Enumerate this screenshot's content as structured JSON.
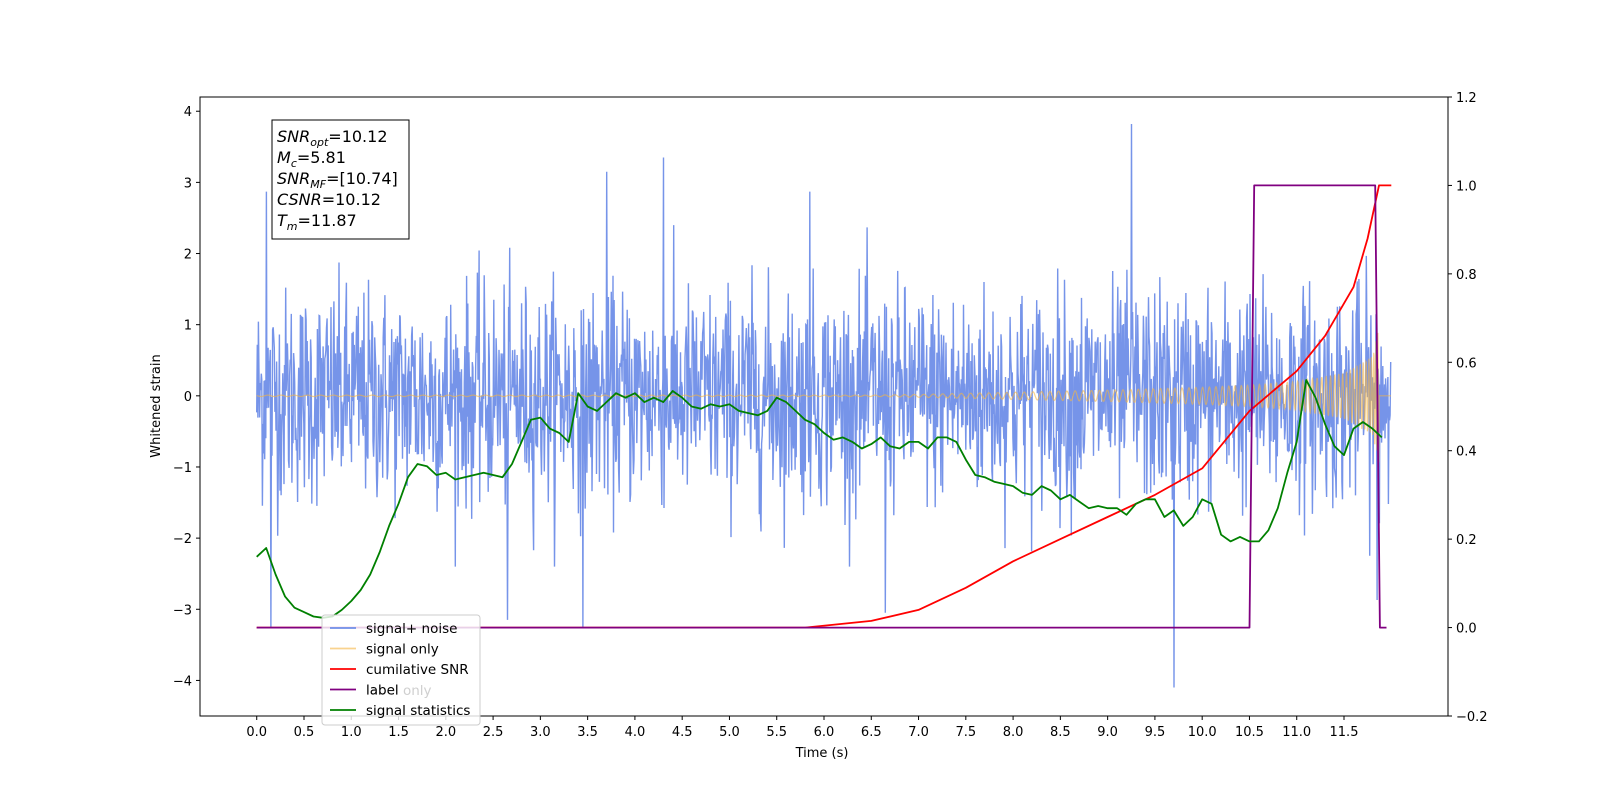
{
  "chart_data": {
    "type": "line",
    "xlabel": "Time (s)",
    "ylabel": "Whitened strain",
    "xlim": [
      -0.6,
      12.6
    ],
    "ylim": [
      -4.5,
      4.2
    ],
    "y2lim": [
      -0.2,
      1.2
    ],
    "x_ticks": [
      0.0,
      0.5,
      1.0,
      1.5,
      2.0,
      2.5,
      3.0,
      3.5,
      4.0,
      4.5,
      5.0,
      5.5,
      6.0,
      6.5,
      7.0,
      7.5,
      8.0,
      8.5,
      9.0,
      9.5,
      10.0,
      10.5,
      11.0,
      11.5
    ],
    "x_tick_labels": [
      "0.0",
      "0.5",
      "1.0",
      "1.5",
      "2.0",
      "2.5",
      "3.0",
      "3.5",
      "4.0",
      "4.5",
      "5.0",
      "5.5",
      "6.0",
      "6.5",
      "7.0",
      "7.5",
      "8.0",
      "8.5",
      "9.0",
      "9.5",
      "10.0",
      "10.5",
      "11.0",
      "11.5"
    ],
    "y_ticks": [
      -4,
      -3,
      -2,
      -1,
      0,
      1,
      2,
      3,
      4
    ],
    "y_tick_labels": [
      "−4",
      "−3",
      "−2",
      "−1",
      "0",
      "1",
      "2",
      "3",
      "4"
    ],
    "y2_ticks": [
      -0.2,
      0.0,
      0.2,
      0.4,
      0.6,
      0.8,
      1.0,
      1.2
    ],
    "y2_tick_labels": [
      "−0.2",
      "0.0",
      "0.2",
      "0.4",
      "0.6",
      "0.8",
      "1.0",
      "1.2"
    ],
    "grid": false,
    "legend_position": "lower-left",
    "annotation": [
      {
        "symbol": "SNR",
        "sub": "opt",
        "value": "=10.12"
      },
      {
        "symbol": "M",
        "sub": "c",
        "value": "=5.81"
      },
      {
        "symbol": "SNR",
        "sub": "MF",
        "value": "=[10.74]"
      },
      {
        "symbol": "CSNR",
        "sub": "",
        "value": "=10.12"
      },
      {
        "symbol": "T",
        "sub": "m",
        "value": "=11.87"
      }
    ],
    "series": [
      {
        "name": "signal+ noise",
        "color": "#6f8ee8",
        "axis": "left",
        "style": "dense noise, approx. ±1.5 with spikes",
        "x_range": [
          0.0,
          12.0
        ],
        "peaks": [
          {
            "x": 0.1,
            "y": 2.87
          },
          {
            "x": 0.15,
            "y": -3.25
          },
          {
            "x": 3.7,
            "y": 3.15
          },
          {
            "x": 4.3,
            "y": 3.35
          },
          {
            "x": 5.85,
            "y": 2.87
          },
          {
            "x": 9.25,
            "y": 3.82
          },
          {
            "x": 9.7,
            "y": -4.1
          },
          {
            "x": 3.45,
            "y": -3.25
          },
          {
            "x": 2.65,
            "y": -3.15
          },
          {
            "x": 6.65,
            "y": -3.05
          },
          {
            "x": 11.85,
            "y": -2.87
          }
        ]
      },
      {
        "name": "signal only",
        "color": "#f5b642",
        "axis": "left",
        "style": "chirp, amplitude grows toward merger",
        "x": [
          0.0,
          6.5,
          7.0,
          8.0,
          9.0,
          10.0,
          10.5,
          11.0,
          11.5,
          11.8,
          11.87
        ],
        "envelope": [
          0.01,
          0.01,
          0.02,
          0.05,
          0.08,
          0.12,
          0.15,
          0.2,
          0.32,
          0.55,
          0.95
        ]
      },
      {
        "name": "cumilative SNR",
        "color": "#ff0000",
        "axis": "right",
        "x": [
          0.0,
          5.8,
          6.5,
          7.0,
          7.5,
          8.0,
          8.5,
          9.0,
          9.5,
          10.0,
          10.5,
          11.0,
          11.3,
          11.6,
          11.75,
          11.87,
          12.0
        ],
        "values": [
          0.0,
          0.0,
          0.015,
          0.04,
          0.09,
          0.15,
          0.2,
          0.25,
          0.3,
          0.36,
          0.49,
          0.58,
          0.66,
          0.77,
          0.88,
          1.0,
          1.0
        ]
      },
      {
        "name": "label",
        "color": "#800080",
        "axis": "right",
        "x": [
          0.0,
          10.5,
          10.55,
          11.83,
          11.88,
          11.95
        ],
        "values": [
          0.0,
          0.0,
          1.0,
          1.0,
          0.0,
          0.0
        ]
      },
      {
        "name": "signal statistics",
        "color": "#008000",
        "axis": "right",
        "x": [
          0.0,
          0.1,
          0.2,
          0.3,
          0.4,
          0.5,
          0.6,
          0.7,
          0.8,
          0.9,
          1.0,
          1.1,
          1.2,
          1.3,
          1.4,
          1.5,
          1.6,
          1.7,
          1.8,
          1.9,
          2.0,
          2.1,
          2.2,
          2.3,
          2.4,
          2.5,
          2.6,
          2.7,
          2.8,
          2.9,
          3.0,
          3.1,
          3.2,
          3.3,
          3.4,
          3.5,
          3.6,
          3.7,
          3.8,
          3.9,
          4.0,
          4.1,
          4.2,
          4.3,
          4.4,
          4.5,
          4.6,
          4.7,
          4.8,
          4.9,
          5.0,
          5.1,
          5.2,
          5.3,
          5.4,
          5.5,
          5.6,
          5.7,
          5.8,
          5.9,
          6.0,
          6.1,
          6.2,
          6.3,
          6.4,
          6.5,
          6.6,
          6.7,
          6.8,
          6.9,
          7.0,
          7.1,
          7.2,
          7.3,
          7.4,
          7.5,
          7.6,
          7.7,
          7.8,
          7.9,
          8.0,
          8.1,
          8.2,
          8.3,
          8.4,
          8.5,
          8.6,
          8.7,
          8.8,
          8.9,
          9.0,
          9.1,
          9.2,
          9.3,
          9.4,
          9.5,
          9.6,
          9.7,
          9.8,
          9.9,
          10.0,
          10.1,
          10.2,
          10.3,
          10.4,
          10.5,
          10.6,
          10.7,
          10.8,
          10.9,
          11.0,
          11.1,
          11.2,
          11.3,
          11.4,
          11.5,
          11.6,
          11.7,
          11.8,
          11.9
        ],
        "values": [
          0.16,
          0.18,
          0.12,
          0.07,
          0.045,
          0.035,
          0.025,
          0.022,
          0.025,
          0.04,
          0.06,
          0.085,
          0.12,
          0.17,
          0.23,
          0.28,
          0.34,
          0.37,
          0.365,
          0.345,
          0.35,
          0.335,
          0.34,
          0.345,
          0.35,
          0.345,
          0.34,
          0.37,
          0.42,
          0.47,
          0.475,
          0.45,
          0.44,
          0.42,
          0.53,
          0.5,
          0.49,
          0.51,
          0.53,
          0.52,
          0.53,
          0.51,
          0.52,
          0.51,
          0.535,
          0.52,
          0.5,
          0.495,
          0.505,
          0.5,
          0.505,
          0.49,
          0.485,
          0.48,
          0.49,
          0.52,
          0.51,
          0.49,
          0.47,
          0.46,
          0.44,
          0.425,
          0.43,
          0.42,
          0.405,
          0.415,
          0.43,
          0.41,
          0.405,
          0.42,
          0.42,
          0.405,
          0.43,
          0.43,
          0.42,
          0.38,
          0.345,
          0.34,
          0.33,
          0.325,
          0.32,
          0.305,
          0.3,
          0.32,
          0.31,
          0.29,
          0.3,
          0.285,
          0.27,
          0.275,
          0.27,
          0.27,
          0.255,
          0.28,
          0.29,
          0.29,
          0.25,
          0.265,
          0.23,
          0.25,
          0.29,
          0.28,
          0.21,
          0.195,
          0.205,
          0.195,
          0.195,
          0.22,
          0.27,
          0.35,
          0.42,
          0.56,
          0.52,
          0.46,
          0.41,
          0.39,
          0.45,
          0.465,
          0.45,
          0.43
        ]
      }
    ],
    "legend": [
      "signal+ noise",
      "signal only",
      "cumilative SNR",
      "label",
      "signal statistics"
    ],
    "legend_ghost_text": [
      "label only",
      "signal statistics"
    ]
  }
}
